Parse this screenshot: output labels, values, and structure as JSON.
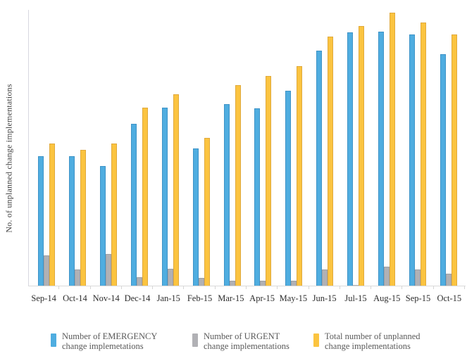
{
  "chart_data": {
    "type": "bar",
    "title": "",
    "xlabel": "",
    "ylabel": "No. of unplanned change implementations",
    "categories": [
      "Sep-14",
      "Oct-14",
      "Nov-14",
      "Dec-14",
      "Jan-15",
      "Feb-15",
      "Mar-15",
      "Apr-15",
      "May-15",
      "Jun-15",
      "Jul-15",
      "Aug-15",
      "Sep-15",
      "Oct-15"
    ],
    "series": [
      {
        "name": "Number of EMERGENCY change implemetations",
        "key": "emergency",
        "color": "#4fade0",
        "border_color": "#3e93c7",
        "values": [
          184,
          184,
          170,
          230,
          253,
          195,
          258,
          252,
          277,
          334,
          360,
          361,
          357,
          329
        ]
      },
      {
        "name": "Number of URGENT change implementations",
        "key": "urgent",
        "color": "#b1b1b5",
        "border_color": "#9fa0a4",
        "values": [
          43,
          23,
          45,
          12,
          24,
          11,
          7,
          7,
          7,
          23,
          1,
          27,
          23,
          17
        ]
      },
      {
        "name": "Total number of unplanned change implementations",
        "key": "total",
        "color": "#fbc440",
        "border_color": "#e0a93c",
        "values": [
          202,
          193,
          202,
          253,
          272,
          210,
          285,
          298,
          312,
          354,
          369,
          388,
          374,
          357
        ]
      }
    ],
    "ylim": [
      0,
      392
    ],
    "y_tick_labels_visible": false,
    "grid": false,
    "legend_position": "bottom"
  },
  "legend": {
    "items": [
      {
        "line1": "Number of EMERGENCY",
        "line2": "change implemetations",
        "color": "#4fade0"
      },
      {
        "line1": "Number of URGENT",
        "line2": "change implementations",
        "color": "#b1b1b5"
      },
      {
        "line1": "Total number of unplanned",
        "line2": "change implementations",
        "color": "#fbc440"
      }
    ]
  }
}
